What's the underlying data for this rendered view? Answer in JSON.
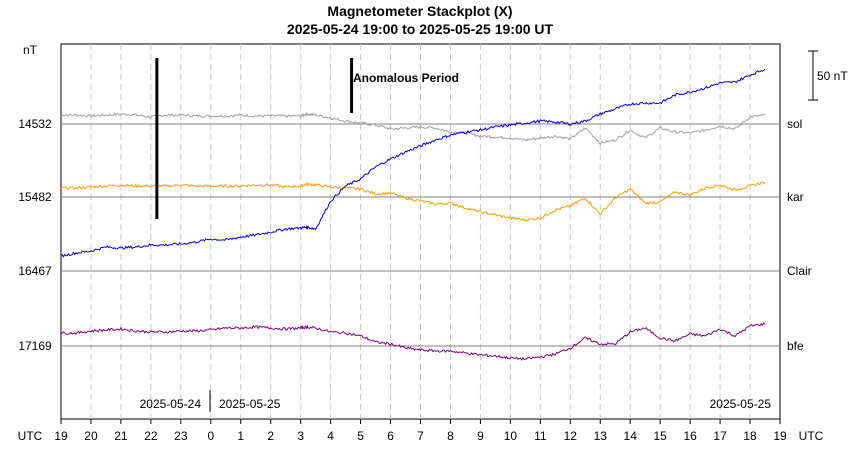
{
  "chart_data": {
    "type": "line",
    "title": "Magnetometer Stackplot (X)",
    "subtitle": "2025-05-24 19:00 to 2025-05-25 19:00 UT",
    "ylabel": "nT",
    "xlabel": "UTC",
    "x_right_label": "UTC",
    "scale_bar_label": "50 nT",
    "annotation": "Anomalous Period",
    "grid": true,
    "hour_ticks": [
      "19",
      "20",
      "21",
      "22",
      "23",
      "0",
      "1",
      "2",
      "3",
      "4",
      "5",
      "6",
      "7",
      "8",
      "9",
      "10",
      "11",
      "12",
      "13",
      "14",
      "15",
      "16",
      "17",
      "18",
      "19"
    ],
    "date_labels": [
      "2025-05-24",
      "2025-05-25",
      "2025-05-25"
    ],
    "baselines": [
      {
        "name": "sol",
        "value": "14532",
        "color": "#a0a0a0"
      },
      {
        "name": "kar",
        "value": "15482",
        "color": "#f5a000"
      },
      {
        "name": "Clair",
        "value": "16467",
        "color": "#0000dd"
      },
      {
        "name": "bfe",
        "value": "17169",
        "color": "#800080"
      }
    ],
    "anomaly_hours": [
      3.2,
      9.7
    ],
    "x_unit": "hours since 2025-05-24 19:00 UT",
    "x": [
      0,
      0.5,
      1,
      1.5,
      2,
      2.5,
      3,
      3.5,
      4,
      4.5,
      5,
      5.5,
      6,
      6.5,
      7,
      7.5,
      8,
      8.2,
      8.5,
      9,
      9.5,
      10,
      10.5,
      11,
      11.5,
      12,
      12.5,
      13,
      13.5,
      14,
      14.5,
      15,
      15.5,
      16,
      16.5,
      17,
      17.5,
      18,
      18.5,
      19,
      19.5,
      20,
      20.5,
      21,
      21.5,
      22,
      22.5,
      23,
      23.5
    ],
    "series": [
      {
        "name": "sol",
        "color": "#a0a0a0",
        "values": [
          9,
          9,
          8,
          9,
          10,
          9,
          7,
          9,
          9,
          8,
          8,
          8,
          9,
          8,
          8,
          8,
          8,
          10,
          9,
          6,
          3,
          1,
          -1,
          -5,
          -4,
          -3,
          -4,
          -8,
          -9,
          -12,
          -13,
          -14,
          -16,
          -14,
          -12,
          -15,
          -4,
          -19,
          -16,
          -6,
          -14,
          -4,
          -8,
          -9,
          -6,
          -2,
          -5,
          7,
          9
        ]
      },
      {
        "name": "kar",
        "color": "#f5a000",
        "values": [
          9,
          9,
          10,
          11,
          12,
          11,
          11,
          11,
          12,
          11,
          11,
          11,
          11,
          12,
          12,
          10,
          11,
          13,
          12,
          10,
          9,
          8,
          3,
          4,
          -1,
          -4,
          -7,
          -6,
          -11,
          -15,
          -18,
          -21,
          -23,
          -21,
          -13,
          -9,
          -1,
          -17,
          -1,
          8,
          -6,
          -5,
          5,
          2,
          9,
          12,
          7,
          11,
          15
        ]
      },
      {
        "name": "Clair",
        "color": "#0000dd",
        "values": [
          15,
          18,
          20,
          24,
          23,
          24,
          26,
          26,
          27,
          29,
          32,
          31,
          34,
          36,
          39,
          42,
          43,
          44,
          42,
          70,
          85,
          92,
          104,
          112,
          119,
          125,
          131,
          136,
          139,
          141,
          144,
          146,
          148,
          150,
          149,
          147,
          150,
          157,
          162,
          167,
          168,
          168,
          176,
          179,
          183,
          188,
          189,
          196,
          202
        ]
      },
      {
        "name": "bfe",
        "color": "#800080",
        "values": [
          13,
          13,
          15,
          16,
          17,
          15,
          14,
          14,
          15,
          15,
          16,
          18,
          18,
          19,
          18,
          17,
          18,
          19,
          18,
          14,
          13,
          10,
          4,
          2,
          -2,
          -4,
          -5,
          -5,
          -7,
          -9,
          -10,
          -12,
          -13,
          -11,
          -8,
          -2,
          8,
          2,
          2,
          14,
          18,
          8,
          5,
          12,
          10,
          17,
          10,
          20,
          22
        ]
      }
    ]
  }
}
